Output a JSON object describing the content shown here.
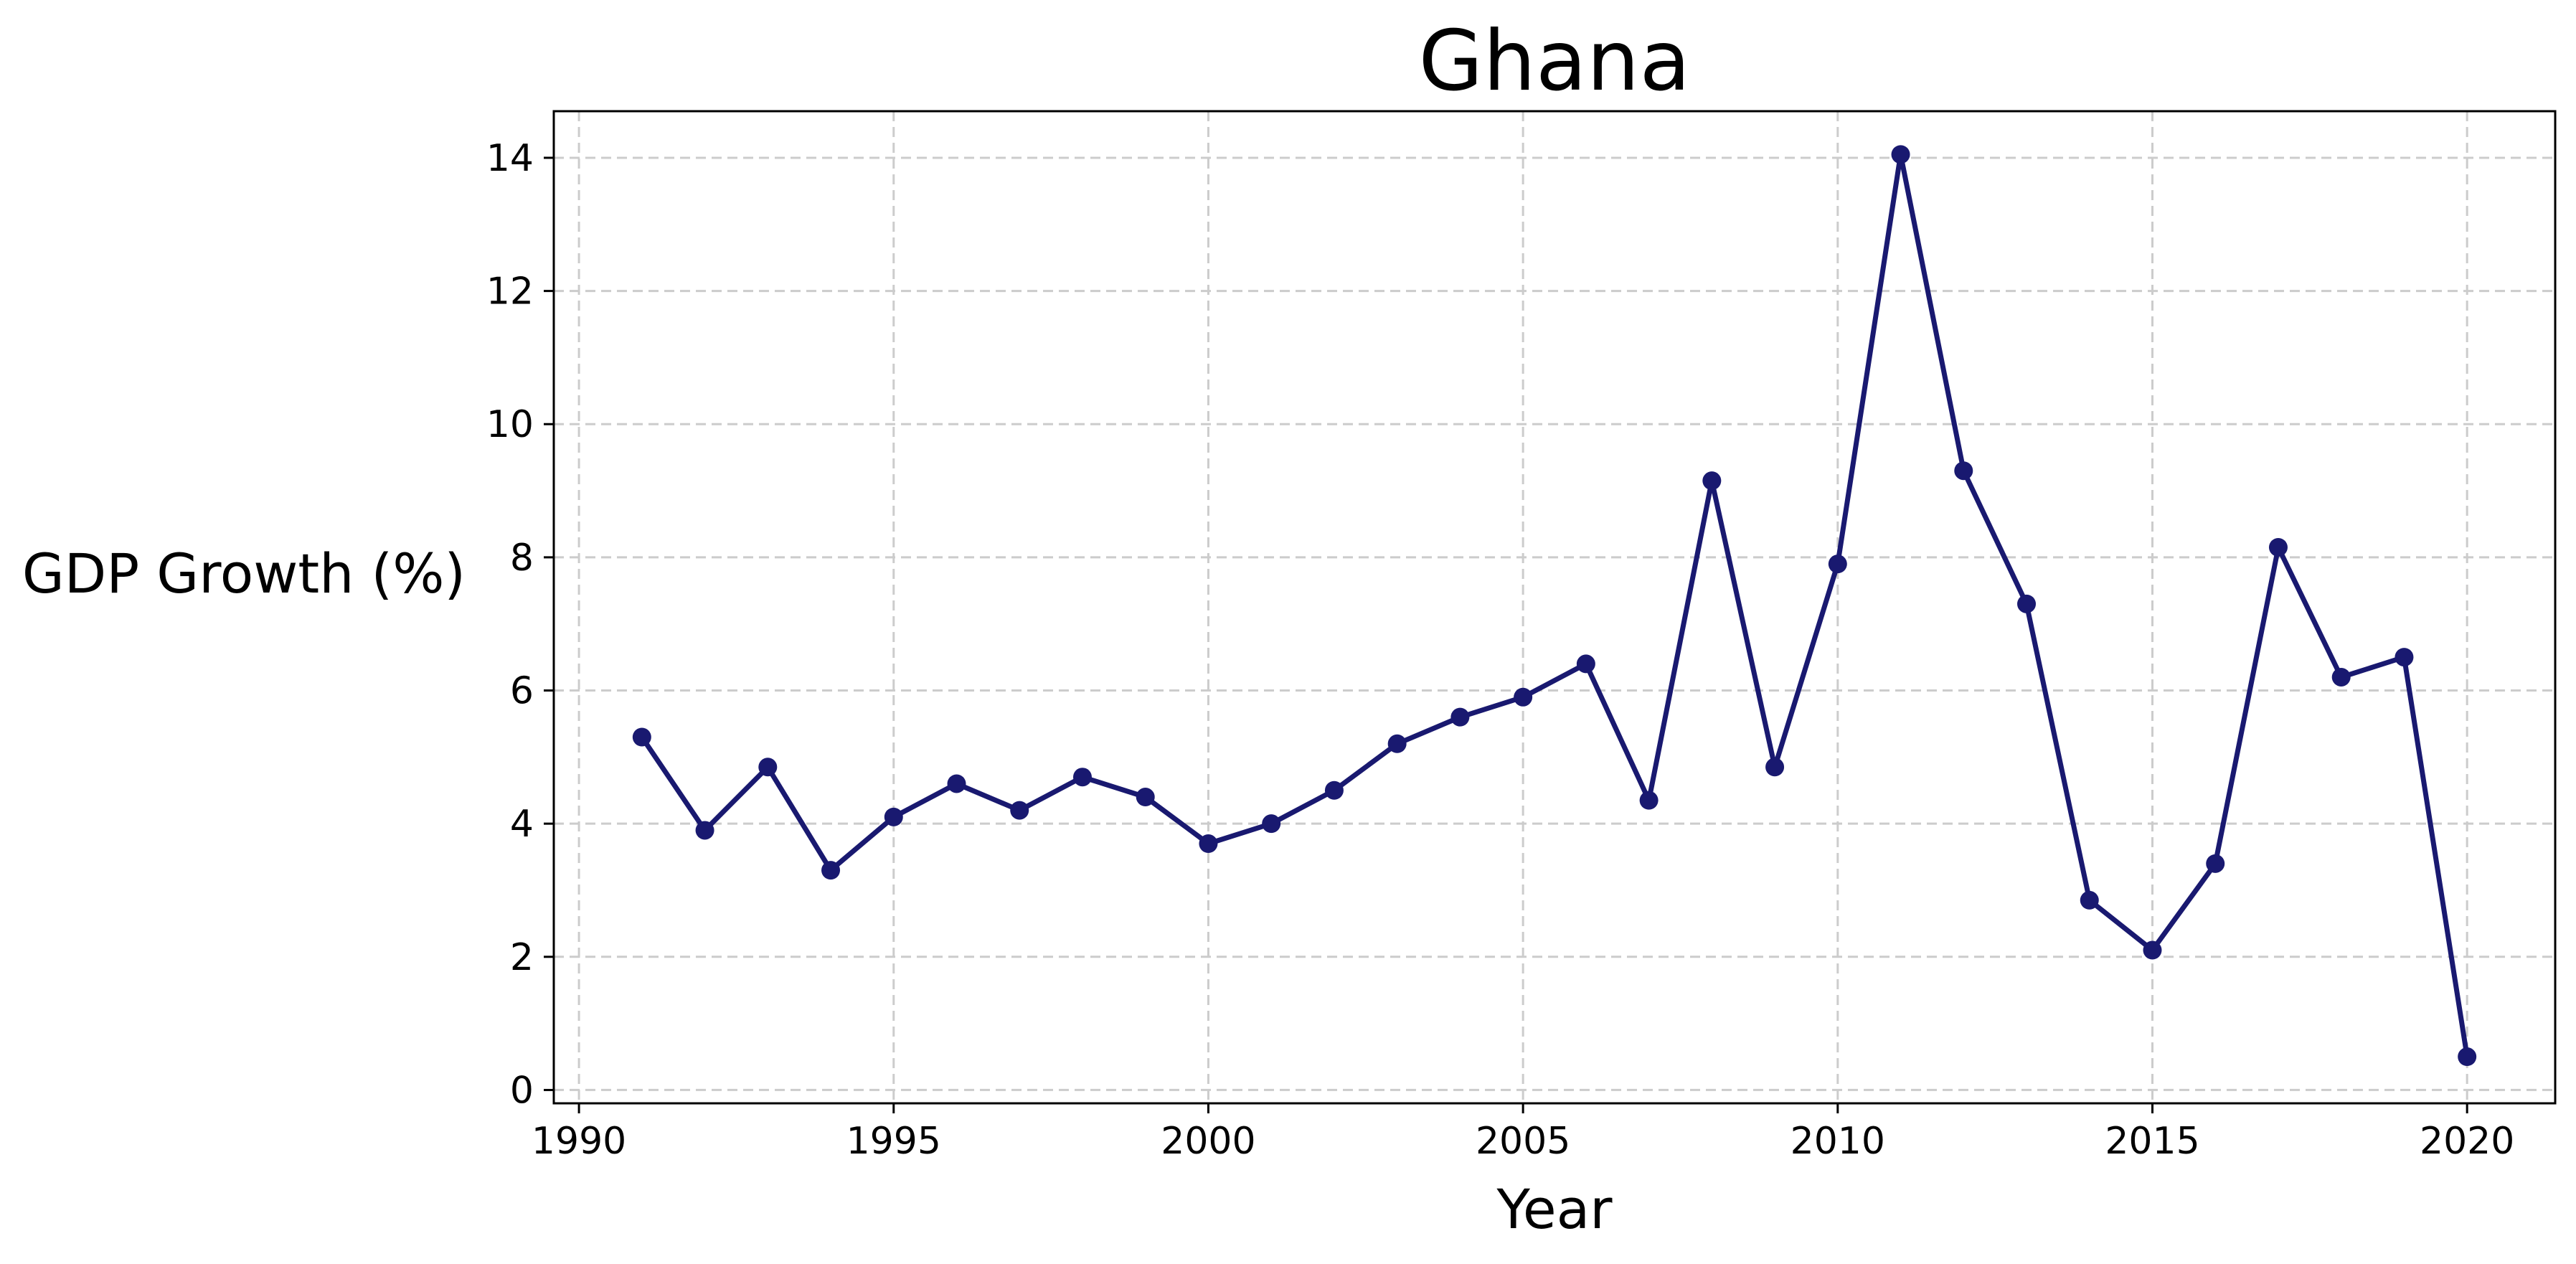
{
  "chart_data": {
    "type": "line",
    "title": "Ghana",
    "xlabel": "Year",
    "ylabel": "GDP Growth (%)",
    "xlim": [
      1989.6,
      2021.4
    ],
    "ylim": [
      -0.2,
      14.7
    ],
    "xticks": [
      1990,
      1995,
      2000,
      2005,
      2010,
      2015,
      2020
    ],
    "yticks": [
      0,
      2,
      4,
      6,
      8,
      10,
      12,
      14
    ],
    "grid": true,
    "color": "#191970",
    "x": [
      1991,
      1992,
      1993,
      1994,
      1995,
      1996,
      1997,
      1998,
      1999,
      2000,
      2001,
      2002,
      2003,
      2004,
      2005,
      2006,
      2007,
      2008,
      2009,
      2010,
      2011,
      2012,
      2013,
      2014,
      2015,
      2016,
      2017,
      2018,
      2019,
      2020
    ],
    "y": [
      5.3,
      3.9,
      4.85,
      3.3,
      4.1,
      4.6,
      4.2,
      4.7,
      4.4,
      3.7,
      4.0,
      4.5,
      5.2,
      5.6,
      5.9,
      6.4,
      4.35,
      9.15,
      4.85,
      7.9,
      14.05,
      9.3,
      7.3,
      2.85,
      2.1,
      3.4,
      8.15,
      6.2,
      6.5,
      0.5
    ]
  }
}
